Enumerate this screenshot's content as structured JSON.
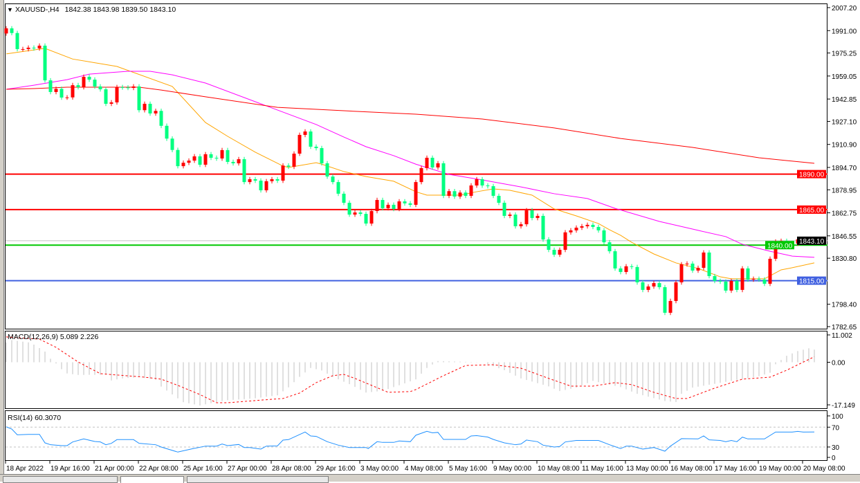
{
  "header": {
    "symbol": "XAUUSD-,H4",
    "ohlc": "1842.38 1843.98 1839.50 1843.10",
    "collapse_icon": "triangle-down-icon"
  },
  "colors": {
    "bull_candle": "#ff0000",
    "bear_candle": "#00ff80",
    "ma_fast": "#ffa500",
    "ma_mid": "#ff00ff",
    "ma_slow": "#ff0000",
    "macd_hist": "#c0c0c0",
    "macd_signal": "#ff0000",
    "rsi_line": "#1e90ff",
    "bid_line": "#c0c0c0"
  },
  "price_axis": {
    "ticks": [
      "2007.20",
      "1991.00",
      "1975.25",
      "1959.05",
      "1942.85",
      "1927.10",
      "1910.90",
      "1894.70",
      "1878.95",
      "1862.75",
      "1846.55",
      "1830.80",
      "1798.40",
      "1782.65"
    ],
    "range": [
      1782.65,
      2007.2
    ]
  },
  "levels": [
    {
      "label": "1890.00",
      "value": 1890.0,
      "color": "#ff0000"
    },
    {
      "label": "1865.00",
      "value": 1865.0,
      "color": "#ff0000"
    },
    {
      "label": "1840.00",
      "value": 1840.0,
      "color": "#00c800"
    },
    {
      "label": "1815.00",
      "value": 1815.0,
      "color": "#4060e0"
    }
  ],
  "bid": {
    "label": "1843.10",
    "value": 1843.1
  },
  "time_axis": [
    "18 Apr 2022",
    "19 Apr 16:00",
    "21 Apr 00:00",
    "22 Apr 08:00",
    "25 Apr 16:00",
    "27 Apr 00:00",
    "28 Apr 08:00",
    "29 Apr 16:00",
    "3 May 00:00",
    "4 May 08:00",
    "5 May 16:00",
    "9 May 00:00",
    "10 May 08:00",
    "11 May 16:00",
    "13 May 00:00",
    "16 May 08:00",
    "17 May 16:00",
    "19 May 00:00",
    "20 May 08:00"
  ],
  "chart_data": [
    {
      "type": "candlestick",
      "timeframe": "H4",
      "first_open": 1989.0,
      "closes": [
        1992.6,
        1989.3,
        1978,
        1978,
        1979,
        1978.5,
        1980.4,
        1956,
        1947.8,
        1950,
        1943.9,
        1944,
        1952.6,
        1951.2,
        1958.5,
        1956.5,
        1951.7,
        1949.7,
        1939.5,
        1940.5,
        1951.2,
        1951,
        1950.7,
        1951.7,
        1935,
        1939.5,
        1932.7,
        1934.5,
        1924,
        1915,
        1907,
        1895.6,
        1898,
        1899.5,
        1902.5,
        1896.6,
        1904,
        1901.5,
        1901,
        1906.9,
        1898.6,
        1897.6,
        1900.5,
        1884.4,
        1886.4,
        1885.4,
        1878.6,
        1885,
        1886.4,
        1885.4,
        1896,
        1895.2,
        1904.4,
        1917.6,
        1920,
        1909.3,
        1908.3,
        1897.6,
        1888.3,
        1884.4,
        1876.2,
        1869.8,
        1861.5,
        1863,
        1862,
        1855.2,
        1864,
        1871.8,
        1866,
        1868.4,
        1865.5,
        1870.8,
        1869.4,
        1868.4,
        1884.4,
        1894.2,
        1901.5,
        1894.7,
        1897.6,
        1874.7,
        1878,
        1874.2,
        1877,
        1874.7,
        1882,
        1886.4,
        1882,
        1881.5,
        1874.7,
        1869.8,
        1860.6,
        1861.5,
        1853.3,
        1854.7,
        1864.5,
        1859.1,
        1860.6,
        1844,
        1836.7,
        1833.3,
        1836.7,
        1849,
        1850.4,
        1852.3,
        1853.3,
        1854.3,
        1852.8,
        1850.4,
        1842,
        1835.7,
        1823.6,
        1821.1,
        1825.1,
        1824.6,
        1813.8,
        1808.5,
        1810.9,
        1813.3,
        1810.4,
        1792.4,
        1800.7,
        1813.8,
        1826.5,
        1827,
        1822.1,
        1824,
        1834.8,
        1818.2,
        1814.8,
        1814.3,
        1808,
        1814.8,
        1808.5,
        1823.6,
        1815.8,
        1816.3,
        1815.8,
        1812.8,
        1830.4,
        1842.5,
        1843,
        1841.6,
        1841.1,
        1844,
        1842,
        1842.5,
        1843.1
      ],
      "moving_averages": [
        {
          "color_key": "ma_fast",
          "points": [
            [
              0,
              1974.6
            ],
            [
              7,
              1978.5
            ],
            [
              12,
              1971
            ],
            [
              20,
              1965.8
            ],
            [
              30,
              1951.7
            ],
            [
              36,
              1926.3
            ],
            [
              40,
              1916.6
            ],
            [
              45,
              1905.4
            ],
            [
              50,
              1895.7
            ],
            [
              51,
              1894.7
            ],
            [
              56,
              1898
            ],
            [
              57,
              1897
            ],
            [
              61,
              1891.8
            ],
            [
              65,
              1888.3
            ],
            [
              70,
              1885
            ],
            [
              74,
              1877.6
            ],
            [
              76,
              1875.2
            ],
            [
              82,
              1875.2
            ],
            [
              85,
              1877.6
            ],
            [
              88,
              1879.6
            ],
            [
              91,
              1878.6
            ],
            [
              95,
              1875.2
            ],
            [
              99,
              1865.5
            ],
            [
              103,
              1860.6
            ],
            [
              107,
              1855.2
            ],
            [
              109,
              1850.8
            ],
            [
              111,
              1846.9
            ],
            [
              113,
              1842
            ],
            [
              117,
              1833.8
            ],
            [
              121,
              1827.5
            ],
            [
              125,
              1823.6
            ],
            [
              129,
              1817.7
            ],
            [
              131,
              1816.3
            ],
            [
              137,
              1816.3
            ],
            [
              140,
              1822.6
            ],
            [
              142,
              1824.1
            ],
            [
              146,
              1827.5
            ]
          ]
        },
        {
          "color_key": "ma_mid",
          "points": [
            [
              0,
              1949.7
            ],
            [
              5,
              1952.6
            ],
            [
              11,
              1956.5
            ],
            [
              15,
              1960.4
            ],
            [
              22,
              1962.4
            ],
            [
              26,
              1962.4
            ],
            [
              30,
              1959.9
            ],
            [
              36,
              1954.1
            ],
            [
              46,
              1939.5
            ],
            [
              56,
              1924.9
            ],
            [
              61,
              1916.1
            ],
            [
              65,
              1909.3
            ],
            [
              70,
              1903
            ],
            [
              74,
              1897
            ],
            [
              80,
              1889.8
            ],
            [
              86,
              1885.9
            ],
            [
              93,
              1881
            ],
            [
              99,
              1876.2
            ],
            [
              105,
              1872.8
            ],
            [
              110,
              1865.9
            ],
            [
              118,
              1856.7
            ],
            [
              125,
              1850.4
            ],
            [
              130,
              1846
            ],
            [
              133,
              1840.6
            ],
            [
              138,
              1835.7
            ],
            [
              142,
              1832.3
            ],
            [
              146,
              1831.4
            ]
          ]
        },
        {
          "color_key": "ma_slow",
          "points": [
            [
              0,
              1949.7
            ],
            [
              5,
              1950.2
            ],
            [
              11,
              1951.2
            ],
            [
              24,
              1951.2
            ],
            [
              28,
              1949.2
            ],
            [
              36,
              1944.4
            ],
            [
              49,
              1937
            ],
            [
              61,
              1934.6
            ],
            [
              74,
              1932.2
            ],
            [
              86,
              1928.8
            ],
            [
              99,
              1922.5
            ],
            [
              111,
              1915.1
            ],
            [
              124,
              1908.8
            ],
            [
              136,
              1901.5
            ],
            [
              146,
              1897.6
            ]
          ]
        }
      ]
    },
    {
      "type": "bar",
      "title": "MACD(12,26,9) 5.089 2.226",
      "axis_ticks": [
        "11.002",
        "0.00",
        "-17.149"
      ],
      "range": [
        -17.149,
        11.002
      ],
      "histogram_points": [
        [
          0,
          8
        ],
        [
          1,
          8.9
        ],
        [
          4,
          8
        ],
        [
          5,
          7.1
        ],
        [
          7,
          4.3
        ],
        [
          8,
          1.4
        ],
        [
          9,
          -0.5
        ],
        [
          10,
          -2.8
        ],
        [
          11,
          -4.5
        ],
        [
          13,
          -5.1
        ],
        [
          18,
          -5
        ],
        [
          19,
          -7.3
        ],
        [
          21,
          -6.5
        ],
        [
          24,
          -6
        ],
        [
          27,
          -7
        ],
        [
          28,
          -9.8
        ],
        [
          32,
          -16.1
        ],
        [
          35,
          -17.4
        ],
        [
          38,
          -16
        ],
        [
          40,
          -15.3
        ],
        [
          45,
          -14.5
        ],
        [
          49,
          -13.3
        ],
        [
          51,
          -10.1
        ],
        [
          53,
          -5.9
        ],
        [
          55,
          -2.3
        ],
        [
          57,
          -3.3
        ],
        [
          59,
          -5.9
        ],
        [
          62,
          -8.8
        ],
        [
          65,
          -12.2
        ],
        [
          68,
          -11.5
        ],
        [
          72,
          -8.5
        ],
        [
          74,
          -6.9
        ],
        [
          76,
          -2.3
        ],
        [
          78,
          0.5
        ],
        [
          86,
          0
        ],
        [
          90,
          -3.2
        ],
        [
          93,
          -6.5
        ],
        [
          98,
          -9.7
        ],
        [
          100,
          -11.6
        ],
        [
          103,
          -10.2
        ],
        [
          106,
          -7.5
        ],
        [
          111,
          -10
        ],
        [
          114,
          -12.7
        ],
        [
          119,
          -15.6
        ],
        [
          121,
          -16
        ],
        [
          122,
          -12.7
        ],
        [
          124,
          -10.2
        ],
        [
          131,
          -7.5
        ],
        [
          136,
          -5.6
        ],
        [
          138,
          -4.2
        ],
        [
          139,
          -0.8
        ],
        [
          141,
          2.6
        ],
        [
          143,
          4.5
        ],
        [
          145,
          5.6
        ],
        [
          146,
          5.089
        ]
      ],
      "signal_points": [
        [
          0,
          10.2
        ],
        [
          6,
          9.3
        ],
        [
          9,
          6
        ],
        [
          13,
          0.1
        ],
        [
          17,
          -4.6
        ],
        [
          25,
          -6
        ],
        [
          28,
          -6.8
        ],
        [
          31,
          -9.3
        ],
        [
          35,
          -13
        ],
        [
          38,
          -16.3
        ],
        [
          40,
          -16.3
        ],
        [
          48,
          -14.9
        ],
        [
          50,
          -14.6
        ],
        [
          53,
          -12.4
        ],
        [
          56,
          -8.2
        ],
        [
          59,
          -5.4
        ],
        [
          61,
          -4.9
        ],
        [
          63,
          -6.5
        ],
        [
          66,
          -9.3
        ],
        [
          69,
          -12.1
        ],
        [
          73,
          -11.8
        ],
        [
          74,
          -11
        ],
        [
          79,
          -5.4
        ],
        [
          83,
          -1.3
        ],
        [
          88,
          -1
        ],
        [
          93,
          -2.4
        ],
        [
          98,
          -6.5
        ],
        [
          102,
          -9.6
        ],
        [
          106,
          -9.6
        ],
        [
          110,
          -8.2
        ],
        [
          113,
          -9
        ],
        [
          117,
          -12.1
        ],
        [
          121,
          -14.6
        ],
        [
          123,
          -14.6
        ],
        [
          128,
          -10.4
        ],
        [
          133,
          -6.8
        ],
        [
          138,
          -6
        ],
        [
          141,
          -3.2
        ],
        [
          146,
          2.226
        ]
      ]
    },
    {
      "type": "line",
      "title": "RSI(14) 60.3070",
      "axis_ticks": [
        "100",
        "70",
        "30",
        "0"
      ],
      "levels": [
        70,
        30
      ],
      "range": [
        0,
        100
      ],
      "points": [
        [
          0,
          70.8
        ],
        [
          1,
          66.2
        ],
        [
          2,
          54.6
        ],
        [
          4,
          55.5
        ],
        [
          6,
          55.5
        ],
        [
          7,
          38.3
        ],
        [
          8,
          34.6
        ],
        [
          10,
          32.8
        ],
        [
          11,
          32.8
        ],
        [
          12,
          40.2
        ],
        [
          14,
          46.3
        ],
        [
          16,
          41.1
        ],
        [
          17,
          40.2
        ],
        [
          18,
          34.6
        ],
        [
          19,
          37.4
        ],
        [
          20,
          44.9
        ],
        [
          23,
          44.9
        ],
        [
          24,
          37.4
        ],
        [
          27,
          34.6
        ],
        [
          28,
          30
        ],
        [
          31,
          19.8
        ],
        [
          33.5,
          26.2
        ],
        [
          36,
          31.8
        ],
        [
          38,
          31.8
        ],
        [
          39,
          36
        ],
        [
          40,
          32.8
        ],
        [
          42,
          35.1
        ],
        [
          43,
          29
        ],
        [
          44,
          29
        ],
        [
          46,
          25.8
        ],
        [
          47,
          31.8
        ],
        [
          49,
          32.3
        ],
        [
          50,
          43.9
        ],
        [
          51,
          44.9
        ],
        [
          54,
          60.2
        ],
        [
          55,
          52.3
        ],
        [
          56,
          51.5
        ],
        [
          58,
          40.7
        ],
        [
          60,
          33.7
        ],
        [
          62,
          29
        ],
        [
          65,
          29
        ],
        [
          65.4,
          26.8
        ],
        [
          67,
          40.7
        ],
        [
          68,
          39.3
        ],
        [
          70,
          39.3
        ],
        [
          71,
          42.1
        ],
        [
          73,
          40.7
        ],
        [
          74,
          53.7
        ],
        [
          76,
          61.6
        ],
        [
          77,
          58.6
        ],
        [
          78,
          59.5
        ],
        [
          79,
          45.3
        ],
        [
          83,
          45.3
        ],
        [
          84,
          52.3
        ],
        [
          85,
          53
        ],
        [
          87,
          50
        ],
        [
          88,
          45.3
        ],
        [
          90,
          38.3
        ],
        [
          92,
          34.6
        ],
        [
          93,
          36
        ],
        [
          94,
          44
        ],
        [
          96,
          40.7
        ],
        [
          97,
          33.7
        ],
        [
          99,
          30
        ],
        [
          100,
          31
        ],
        [
          101,
          40.2
        ],
        [
          103,
          43.2
        ],
        [
          107,
          43.2
        ],
        [
          109,
          34.6
        ],
        [
          111,
          26.8
        ],
        [
          112,
          31.8
        ],
        [
          113,
          31.8
        ],
        [
          115,
          25.8
        ],
        [
          117,
          29
        ],
        [
          119,
          21.6
        ],
        [
          120,
          31.8
        ],
        [
          122,
          46.8
        ],
        [
          125,
          46.3
        ],
        [
          126,
          52.3
        ],
        [
          127,
          44.4
        ],
        [
          129,
          43.2
        ],
        [
          130,
          40.7
        ],
        [
          131,
          43.2
        ],
        [
          132,
          40.7
        ],
        [
          133,
          49.9
        ],
        [
          134,
          46.3
        ],
        [
          137,
          46.3
        ],
        [
          139,
          60.2
        ],
        [
          142,
          60.2
        ],
        [
          143,
          61.6
        ],
        [
          144,
          60.2
        ],
        [
          146,
          60.307
        ]
      ]
    }
  ]
}
